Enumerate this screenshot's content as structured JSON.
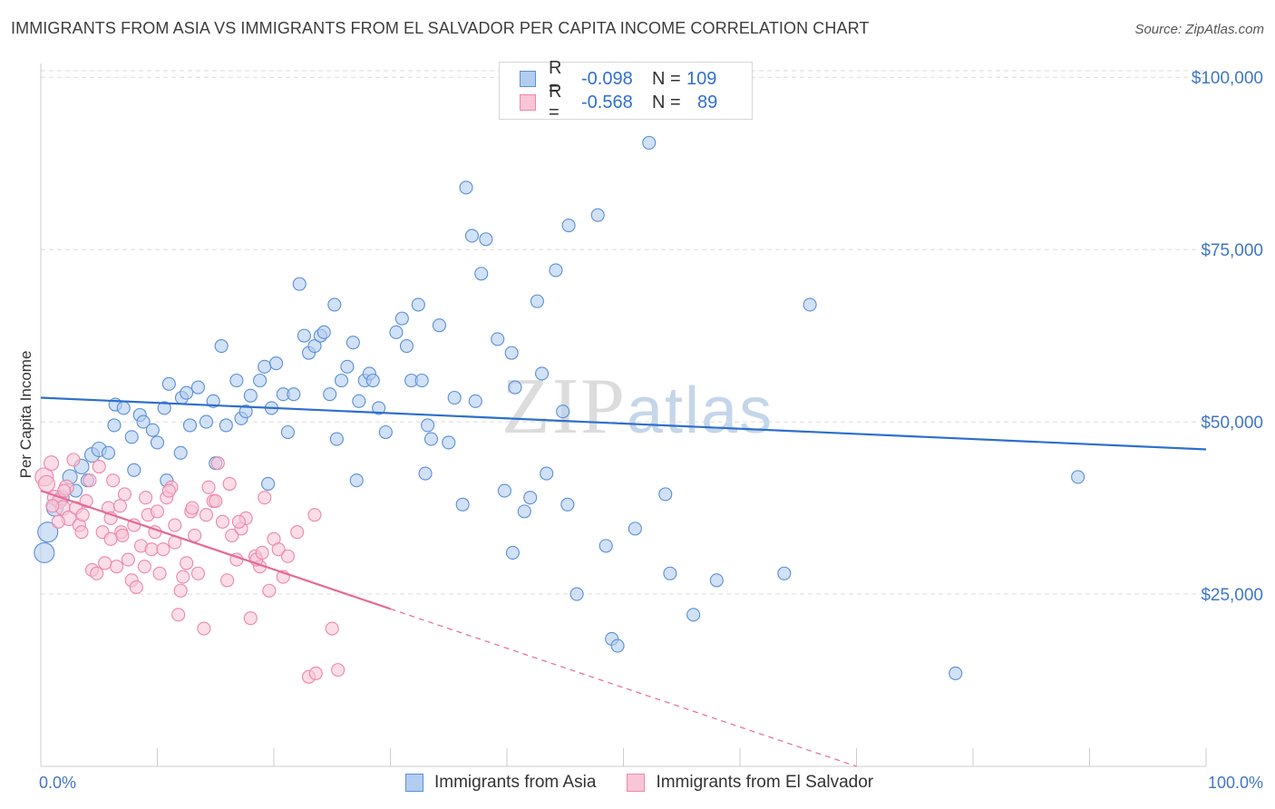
{
  "title": "IMMIGRANTS FROM ASIA VS IMMIGRANTS FROM EL SALVADOR PER CAPITA INCOME CORRELATION CHART",
  "source": "Source: ZipAtlas.com",
  "watermark": {
    "zip": "ZIP",
    "atlas": "atlas"
  },
  "legend": {
    "rows": [
      {
        "r_label": "R =",
        "r_value": "-0.098",
        "n_label": "N =",
        "n_value": "109",
        "color": "#6fa0e6"
      },
      {
        "r_label": "R =",
        "r_value": "-0.568",
        "n_label": "N =",
        "n_value": "89",
        "color": "#f090b0"
      }
    ]
  },
  "bottom_legend": [
    "Immigrants from Asia",
    "Immigrants from El Salvador"
  ],
  "chart_data": {
    "type": "scatter",
    "title": "IMMIGRANTS FROM ASIA VS IMMIGRANTS FROM EL SALVADOR PER CAPITA INCOME CORRELATION CHART",
    "xlabel": "",
    "ylabel": "Per Capita Income",
    "xlim": [
      0,
      100
    ],
    "ylim": [
      0,
      102000
    ],
    "x_tick_labels": [
      "0.0%",
      "100.0%"
    ],
    "y_ticks": [
      25000,
      50000,
      75000,
      100000
    ],
    "y_tick_labels": [
      "$25,000",
      "$50,000",
      "$75,000",
      "$100,000"
    ],
    "grid": true,
    "legend_position": "top-center",
    "colors": {
      "asia": "#5b8fd9",
      "asia_fill": "#b3cdf0",
      "asia_line": "#2d6fcc",
      "salvador": "#ef86aa",
      "salvador_fill": "#f8c6d7",
      "salvador_line": "#e56b93"
    },
    "series": [
      {
        "name": "Immigrants from Asia",
        "trend": {
          "x": [
            0,
            100
          ],
          "y": [
            53500,
            46000
          ],
          "solid_to": 100
        },
        "points": [
          [
            0.3,
            31000,
            11
          ],
          [
            0.6,
            34000,
            11
          ],
          [
            1.2,
            37500,
            9
          ],
          [
            1.8,
            39000,
            8
          ],
          [
            2.5,
            42000,
            8
          ],
          [
            3.5,
            43500,
            8
          ],
          [
            4.4,
            45200,
            8
          ],
          [
            5.0,
            46000,
            8
          ],
          [
            5.8,
            45500,
            7
          ],
          [
            6.4,
            52500,
            7
          ],
          [
            7.1,
            52000,
            7
          ],
          [
            6.3,
            49500,
            7
          ],
          [
            7.8,
            47800,
            7
          ],
          [
            8.5,
            51000,
            7
          ],
          [
            8.8,
            50000,
            7
          ],
          [
            9.6,
            48800,
            7
          ],
          [
            10.0,
            47000,
            7
          ],
          [
            10.6,
            52000,
            7
          ],
          [
            11.0,
            55500,
            7
          ],
          [
            12.1,
            53500,
            7
          ],
          [
            12.5,
            54200,
            7
          ],
          [
            12.8,
            49500,
            7
          ],
          [
            13.5,
            55000,
            7
          ],
          [
            14.2,
            50000,
            7
          ],
          [
            14.8,
            53000,
            7
          ],
          [
            15.5,
            61000,
            7
          ],
          [
            15.9,
            49500,
            7
          ],
          [
            16.8,
            56000,
            7
          ],
          [
            17.2,
            50500,
            7
          ],
          [
            17.6,
            51500,
            7
          ],
          [
            18.0,
            53800,
            7
          ],
          [
            18.8,
            56000,
            7
          ],
          [
            19.2,
            58000,
            7
          ],
          [
            19.8,
            52000,
            7
          ],
          [
            20.2,
            58500,
            7
          ],
          [
            20.8,
            54000,
            7
          ],
          [
            21.2,
            48500,
            7
          ],
          [
            21.7,
            54000,
            7
          ],
          [
            22.2,
            70000,
            7
          ],
          [
            22.6,
            62500,
            7
          ],
          [
            23.0,
            60000,
            7
          ],
          [
            23.5,
            61000,
            7
          ],
          [
            24.0,
            62500,
            7
          ],
          [
            24.3,
            63000,
            7
          ],
          [
            24.8,
            54000,
            7
          ],
          [
            25.2,
            67000,
            7
          ],
          [
            25.8,
            56000,
            7
          ],
          [
            26.3,
            58000,
            7
          ],
          [
            26.8,
            61500,
            7
          ],
          [
            27.3,
            53000,
            7
          ],
          [
            27.8,
            56000,
            7
          ],
          [
            28.2,
            57000,
            7
          ],
          [
            28.5,
            56000,
            7
          ],
          [
            29.0,
            52000,
            7
          ],
          [
            29.6,
            48500,
            7
          ],
          [
            30.5,
            63000,
            7
          ],
          [
            31.0,
            65000,
            7
          ],
          [
            31.4,
            61000,
            7
          ],
          [
            31.8,
            56000,
            7
          ],
          [
            32.4,
            67000,
            7
          ],
          [
            32.7,
            56000,
            7
          ],
          [
            33.5,
            47500,
            7
          ],
          [
            34.2,
            64000,
            7
          ],
          [
            33.0,
            42500,
            7
          ],
          [
            35.0,
            47000,
            7
          ],
          [
            35.5,
            53500,
            7
          ],
          [
            36.5,
            84000,
            7
          ],
          [
            37.0,
            77000,
            7
          ],
          [
            37.3,
            53000,
            7
          ],
          [
            37.8,
            71500,
            7
          ],
          [
            38.2,
            76500,
            7
          ],
          [
            39.2,
            62000,
            7
          ],
          [
            39.8,
            40000,
            7
          ],
          [
            40.4,
            60000,
            7
          ],
          [
            40.7,
            55000,
            7
          ],
          [
            41.5,
            37000,
            7
          ],
          [
            42.0,
            39000,
            7
          ],
          [
            42.6,
            67500,
            7
          ],
          [
            43.0,
            57000,
            7
          ],
          [
            43.4,
            42500,
            7
          ],
          [
            44.2,
            72000,
            7
          ],
          [
            44.8,
            51500,
            7
          ],
          [
            45.3,
            78500,
            7
          ],
          [
            46.0,
            25000,
            7
          ],
          [
            47.8,
            80000,
            7
          ],
          [
            48.5,
            32000,
            7
          ],
          [
            49.0,
            18500,
            7
          ],
          [
            49.5,
            17500,
            7
          ],
          [
            51.0,
            34500,
            7
          ],
          [
            52.2,
            90500,
            7
          ],
          [
            53.6,
            39500,
            7
          ],
          [
            54.0,
            28000,
            7
          ],
          [
            56.0,
            22000,
            7
          ],
          [
            58.0,
            27000,
            7
          ],
          [
            63.8,
            28000,
            7
          ],
          [
            66.0,
            67000,
            7
          ],
          [
            78.5,
            13500,
            7
          ],
          [
            89.0,
            42000,
            7
          ],
          [
            45.2,
            38000,
            7
          ],
          [
            36.2,
            38000,
            7
          ],
          [
            27.1,
            41500,
            7
          ],
          [
            40.5,
            31000,
            7
          ],
          [
            33.2,
            49500,
            7
          ],
          [
            25.4,
            47500,
            7
          ],
          [
            19.5,
            41000,
            7
          ],
          [
            15.0,
            44000,
            7
          ],
          [
            12.0,
            45500,
            7
          ],
          [
            4.0,
            41500,
            7
          ],
          [
            3.0,
            40000,
            7
          ],
          [
            8.0,
            43000,
            7
          ],
          [
            10.8,
            41500,
            7
          ]
        ]
      },
      {
        "name": "Immigrants from El Salvador",
        "trend": {
          "x": [
            0,
            70
          ],
          "y": [
            40000,
            0
          ],
          "solid_to": 30
        },
        "points": [
          [
            0.3,
            42000,
            10
          ],
          [
            0.5,
            41000,
            9
          ],
          [
            0.9,
            44000,
            8
          ],
          [
            1.2,
            39000,
            8
          ],
          [
            1.6,
            38500,
            8
          ],
          [
            1.9,
            37500,
            8
          ],
          [
            2.2,
            40500,
            8
          ],
          [
            2.4,
            36000,
            8
          ],
          [
            2.8,
            44500,
            7
          ],
          [
            3.0,
            37500,
            7
          ],
          [
            3.3,
            35000,
            7
          ],
          [
            3.6,
            36500,
            7
          ],
          [
            3.9,
            38500,
            7
          ],
          [
            4.2,
            41500,
            7
          ],
          [
            4.4,
            28500,
            7
          ],
          [
            4.8,
            28000,
            7
          ],
          [
            5.0,
            43500,
            7
          ],
          [
            5.3,
            34000,
            7
          ],
          [
            5.8,
            37500,
            7
          ],
          [
            6.0,
            36000,
            7
          ],
          [
            6.2,
            41500,
            7
          ],
          [
            6.5,
            29000,
            7
          ],
          [
            6.9,
            34000,
            7
          ],
          [
            7.2,
            39500,
            7
          ],
          [
            7.5,
            30000,
            7
          ],
          [
            7.8,
            27000,
            7
          ],
          [
            8.2,
            26000,
            7
          ],
          [
            8.6,
            32000,
            7
          ],
          [
            8.9,
            29000,
            7
          ],
          [
            9.2,
            36500,
            7
          ],
          [
            9.5,
            31500,
            7
          ],
          [
            9.8,
            34000,
            7
          ],
          [
            10.2,
            28000,
            7
          ],
          [
            10.5,
            31500,
            7
          ],
          [
            10.8,
            39000,
            7
          ],
          [
            11.2,
            40500,
            7
          ],
          [
            11.5,
            35000,
            7
          ],
          [
            11.8,
            22000,
            7
          ],
          [
            12.2,
            27500,
            7
          ],
          [
            12.5,
            29500,
            7
          ],
          [
            12.9,
            37000,
            7
          ],
          [
            13.2,
            33500,
            7
          ],
          [
            13.5,
            28000,
            7
          ],
          [
            14.0,
            20000,
            7
          ],
          [
            14.4,
            40500,
            7
          ],
          [
            14.8,
            38500,
            7
          ],
          [
            15.2,
            44000,
            7
          ],
          [
            15.6,
            35500,
            7
          ],
          [
            16.0,
            27000,
            7
          ],
          [
            16.4,
            33500,
            7
          ],
          [
            16.8,
            30000,
            7
          ],
          [
            17.2,
            34500,
            7
          ],
          [
            17.6,
            36000,
            7
          ],
          [
            18.0,
            21500,
            7
          ],
          [
            18.4,
            30500,
            7
          ],
          [
            18.8,
            29000,
            7
          ],
          [
            19.2,
            39000,
            7
          ],
          [
            19.6,
            25500,
            7
          ],
          [
            20.0,
            33000,
            7
          ],
          [
            20.4,
            31500,
            7
          ],
          [
            20.8,
            27500,
            7
          ],
          [
            21.2,
            30500,
            7
          ],
          [
            22.0,
            34000,
            7
          ],
          [
            23.5,
            36500,
            7
          ],
          [
            25.0,
            20000,
            7
          ],
          [
            23.0,
            13000,
            7
          ],
          [
            23.6,
            13500,
            7
          ],
          [
            25.5,
            14000,
            7
          ],
          [
            2.0,
            40000,
            7
          ],
          [
            1.5,
            35500,
            7
          ],
          [
            6.8,
            37800,
            7
          ],
          [
            9.0,
            39000,
            7
          ],
          [
            10.0,
            37000,
            7
          ],
          [
            11.0,
            40000,
            7
          ],
          [
            13.0,
            37500,
            7
          ],
          [
            14.2,
            36500,
            7
          ],
          [
            15.0,
            38500,
            7
          ],
          [
            16.2,
            41000,
            7
          ],
          [
            17.0,
            35500,
            7
          ],
          [
            18.5,
            30000,
            7
          ],
          [
            19.0,
            31000,
            7
          ],
          [
            12.0,
            25500,
            7
          ],
          [
            7.0,
            33500,
            7
          ],
          [
            5.5,
            29500,
            7
          ],
          [
            8.0,
            35000,
            7
          ],
          [
            3.5,
            34000,
            7
          ],
          [
            6.0,
            33000,
            7
          ],
          [
            11.5,
            32500,
            7
          ],
          [
            1.0,
            37800,
            7
          ]
        ]
      }
    ]
  }
}
